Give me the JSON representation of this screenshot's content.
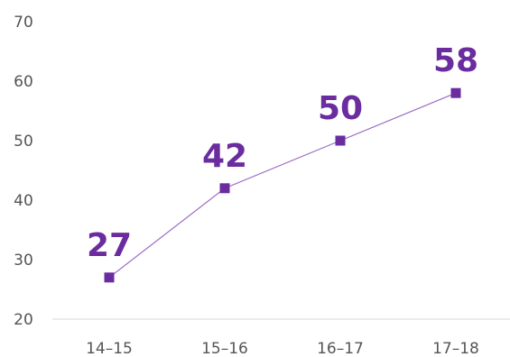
{
  "chart_data": {
    "type": "line",
    "categories": [
      "14–15",
      "15–16",
      "16–17",
      "17–18"
    ],
    "series": [
      {
        "values": [
          27,
          42,
          50,
          58
        ]
      }
    ],
    "data_labels": [
      "27",
      "42",
      "50",
      "58"
    ],
    "y_ticks": [
      "20",
      "30",
      "40",
      "50",
      "60",
      "70"
    ],
    "y_tick_values": [
      20,
      30,
      40,
      50,
      60,
      70
    ],
    "ylim": [
      20,
      70
    ],
    "grid": false,
    "legend": "none",
    "title": "",
    "xlabel": "",
    "ylabel": "",
    "colors": {
      "series": "#6a2c9e",
      "line": "#9b6cc4",
      "axis": "#d9d9d9",
      "tick_text": "#555555"
    }
  }
}
